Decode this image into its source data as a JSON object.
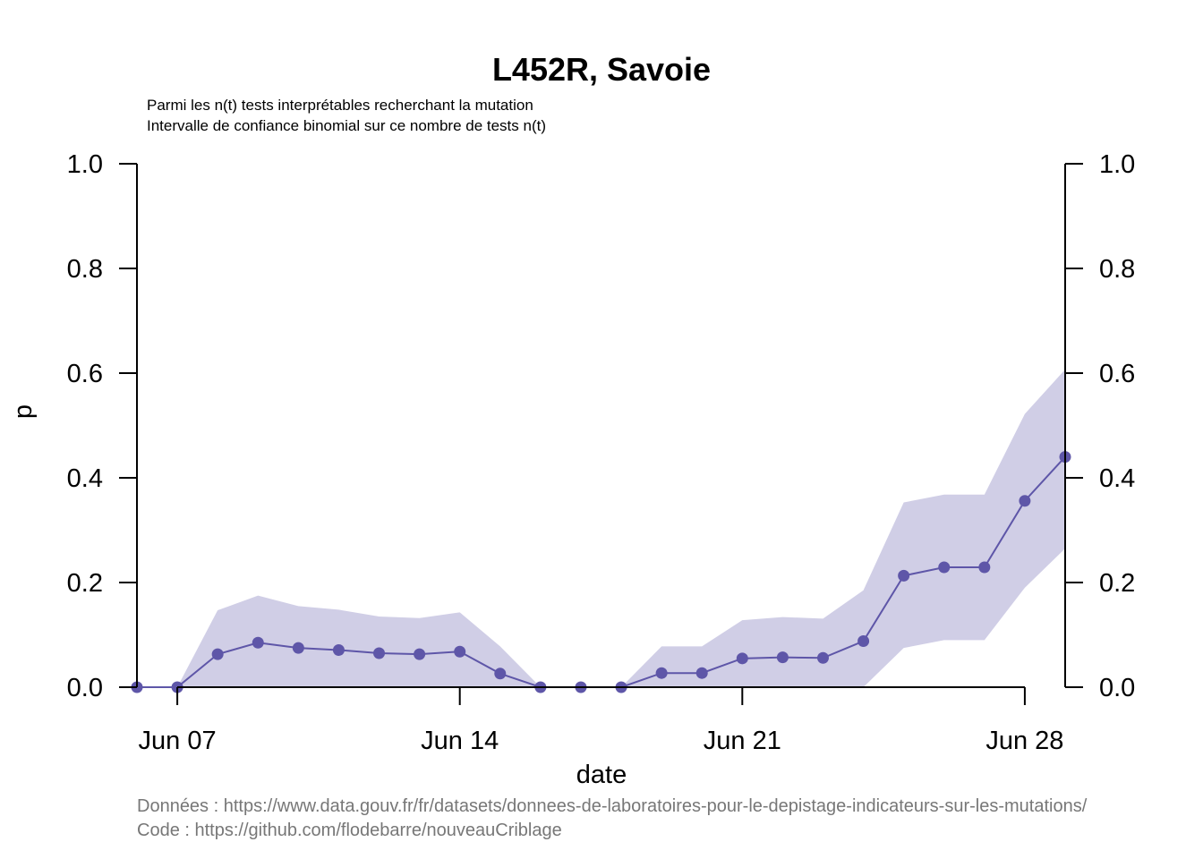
{
  "chart_data": {
    "type": "line",
    "title": "L452R, Savoie",
    "subtitle_lines": [
      "Parmi les n(t) tests interprétables recherchant la mutation",
      "Intervalle de confiance binomial sur ce nombre de tests n(t)"
    ],
    "xlabel": "date",
    "ylabel": "p",
    "ylim": [
      0,
      1
    ],
    "y_ticks": [
      "0.0",
      "0.2",
      "0.4",
      "0.6",
      "0.8",
      "1.0"
    ],
    "y_tick_values": [
      0,
      0.2,
      0.4,
      0.6,
      0.8,
      1.0
    ],
    "x_range": [
      "2021-06-06",
      "2021-06-29"
    ],
    "x_ticks": [
      {
        "date": "2021-06-07",
        "label": "Jun 07"
      },
      {
        "date": "2021-06-14",
        "label": "Jun 14"
      },
      {
        "date": "2021-06-21",
        "label": "Jun 21"
      },
      {
        "date": "2021-06-28",
        "label": "Jun 28"
      }
    ],
    "grid": false,
    "series": [
      {
        "color": "#5e56a8",
        "band_color": "#d0cee6",
        "points": [
          {
            "x": "2021-06-06",
            "y": 0.0,
            "lower": 0.0,
            "upper": 0.0
          },
          {
            "x": "2021-06-07",
            "y": 0.0,
            "lower": 0.0,
            "upper": 0.0
          },
          {
            "x": "2021-06-08",
            "y": 0.063,
            "lower": 0.0,
            "upper": 0.147
          },
          {
            "x": "2021-06-09",
            "y": 0.085,
            "lower": 0.0,
            "upper": 0.175
          },
          {
            "x": "2021-06-10",
            "y": 0.075,
            "lower": 0.0,
            "upper": 0.155
          },
          {
            "x": "2021-06-11",
            "y": 0.071,
            "lower": 0.0,
            "upper": 0.148
          },
          {
            "x": "2021-06-12",
            "y": 0.065,
            "lower": 0.0,
            "upper": 0.135
          },
          {
            "x": "2021-06-13",
            "y": 0.063,
            "lower": 0.0,
            "upper": 0.132
          },
          {
            "x": "2021-06-14",
            "y": 0.068,
            "lower": 0.0,
            "upper": 0.143
          },
          {
            "x": "2021-06-15",
            "y": 0.026,
            "lower": 0.0,
            "upper": 0.078
          },
          {
            "x": "2021-06-16",
            "y": 0.0,
            "lower": 0.0,
            "upper": 0.0
          },
          {
            "x": "2021-06-17",
            "y": 0.0,
            "lower": 0.0,
            "upper": 0.0
          },
          {
            "x": "2021-06-18",
            "y": 0.0,
            "lower": 0.0,
            "upper": 0.0
          },
          {
            "x": "2021-06-19",
            "y": 0.027,
            "lower": 0.0,
            "upper": 0.078
          },
          {
            "x": "2021-06-20",
            "y": 0.027,
            "lower": 0.0,
            "upper": 0.078
          },
          {
            "x": "2021-06-21",
            "y": 0.055,
            "lower": 0.0,
            "upper": 0.128
          },
          {
            "x": "2021-06-22",
            "y": 0.057,
            "lower": 0.0,
            "upper": 0.134
          },
          {
            "x": "2021-06-23",
            "y": 0.056,
            "lower": 0.0,
            "upper": 0.131
          },
          {
            "x": "2021-06-24",
            "y": 0.088,
            "lower": 0.0,
            "upper": 0.185
          },
          {
            "x": "2021-06-25",
            "y": 0.213,
            "lower": 0.075,
            "upper": 0.353
          },
          {
            "x": "2021-06-26",
            "y": 0.229,
            "lower": 0.09,
            "upper": 0.368
          },
          {
            "x": "2021-06-27",
            "y": 0.229,
            "lower": 0.09,
            "upper": 0.368
          },
          {
            "x": "2021-06-28",
            "y": 0.356,
            "lower": 0.19,
            "upper": 0.522
          },
          {
            "x": "2021-06-29",
            "y": 0.44,
            "lower": 0.265,
            "upper": 0.607
          }
        ]
      }
    ]
  },
  "caption": {
    "data_line": "Données : https://www.data.gouv.fr/fr/datasets/donnees-de-laboratoires-pour-le-depistage-indicateurs-sur-les-mutations/",
    "code_line": "Code : https://github.com/flodebarre/nouveauCriblage"
  }
}
